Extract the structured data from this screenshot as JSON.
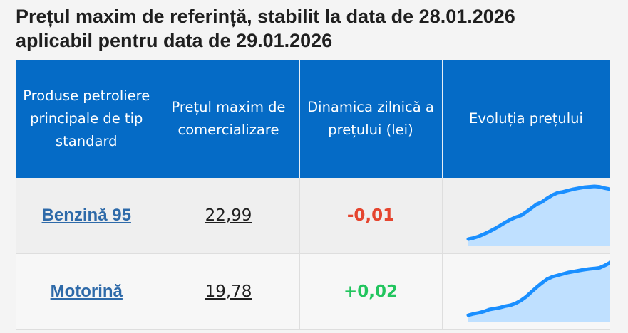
{
  "title": {
    "line1": "Prețul maxim de referință, stabilit la data de 28.01.2026",
    "line2": "aplicabil pentru data de 29.01.2026"
  },
  "table": {
    "headers": [
      "Produse petroliere principale de tip standard",
      "Prețul maxim de comercializare",
      "Dinamica zilnică a prețului (lei)",
      "Evoluția prețului"
    ],
    "rows": [
      {
        "product": "Benzină 95",
        "price": "22,99",
        "dynamic": "-0,01",
        "dynamic_color": "#e5452f",
        "trend": [
          10.0,
          10.05,
          10.12,
          10.22,
          10.33,
          10.45,
          10.58,
          10.72,
          10.85,
          10.95,
          11.03,
          11.18,
          11.35,
          11.52,
          11.62,
          11.78,
          11.92,
          12.02,
          12.06,
          12.12,
          12.18,
          12.22,
          12.26,
          12.28,
          12.3,
          12.28,
          12.22,
          12.18
        ]
      },
      {
        "product": "Motorină",
        "price": "19,78",
        "dynamic": "+0,02",
        "dynamic_color": "#22c55e",
        "trend": [
          10.0,
          10.06,
          10.1,
          10.16,
          10.24,
          10.28,
          10.32,
          10.38,
          10.42,
          10.5,
          10.62,
          10.78,
          10.98,
          11.18,
          11.36,
          11.52,
          11.62,
          11.68,
          11.74,
          11.8,
          11.84,
          11.88,
          11.92,
          11.95,
          11.97,
          12.0,
          12.1,
          12.22
        ]
      }
    ]
  },
  "colors": {
    "header_bg": "#056bc6",
    "sparkline_stroke": "#1a8fff",
    "sparkline_fill": "#bfe0ff"
  }
}
